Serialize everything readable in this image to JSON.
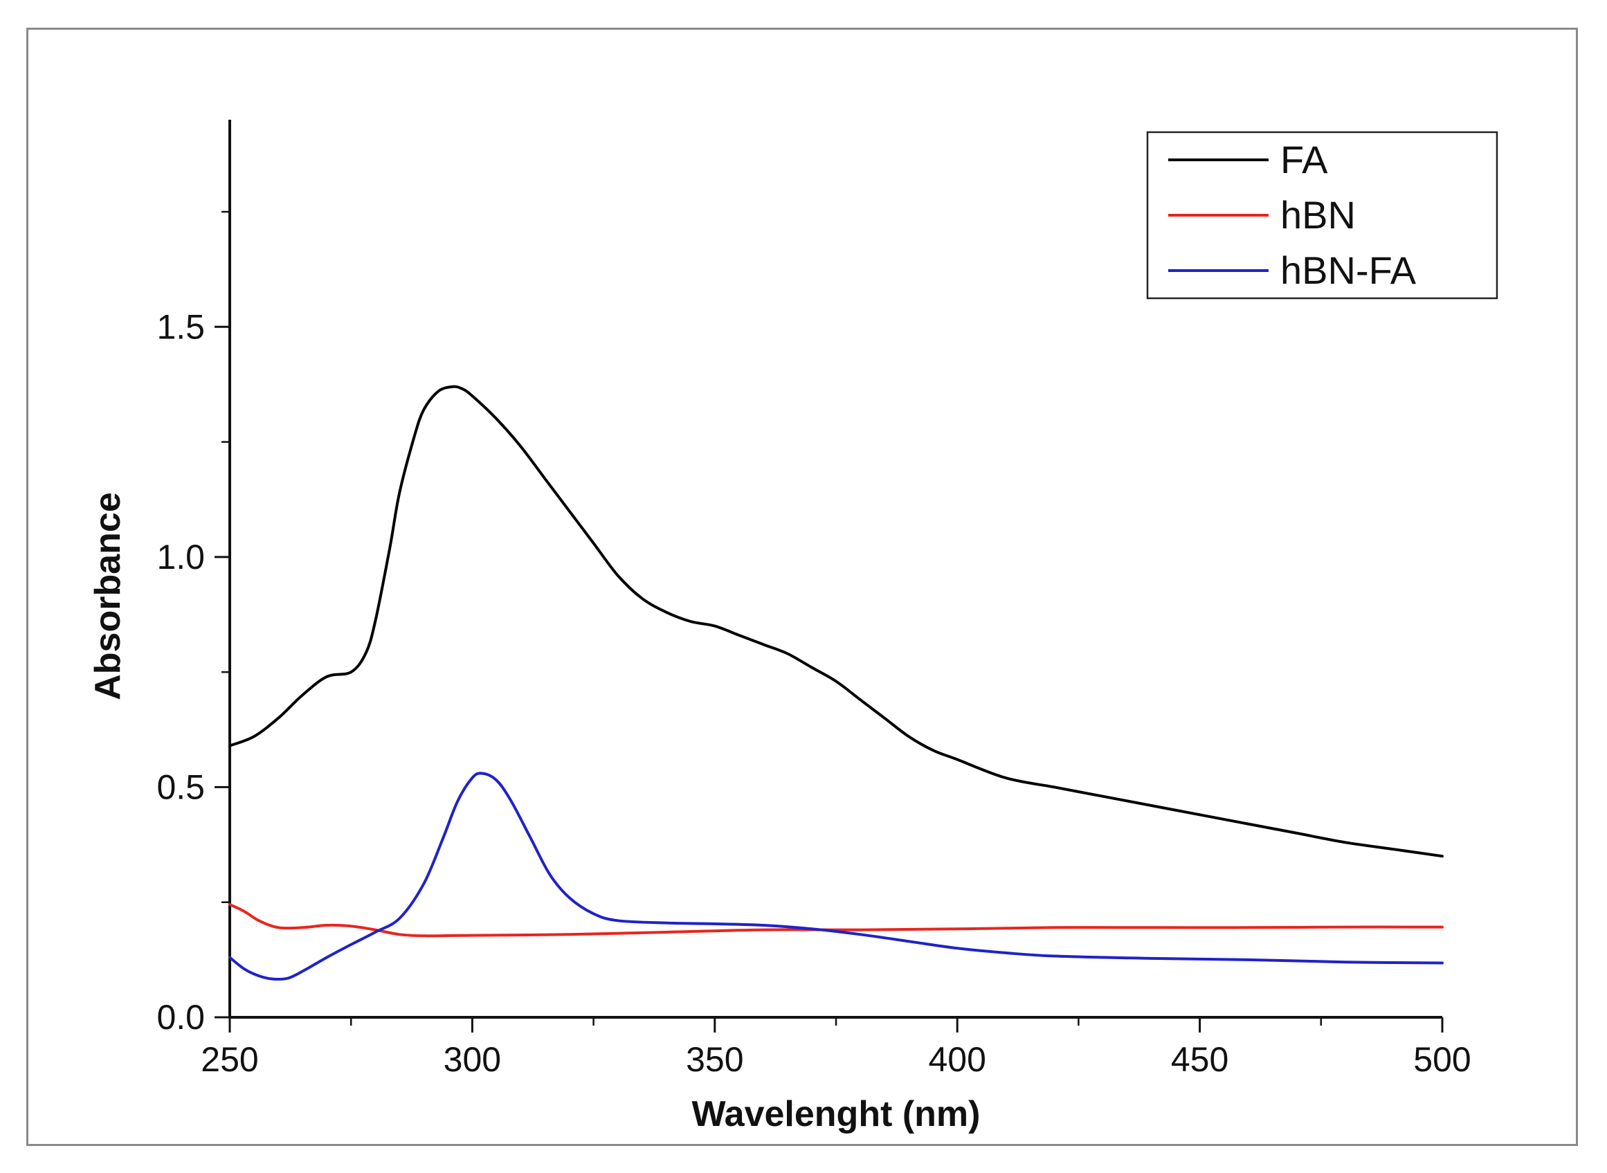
{
  "chart_data": {
    "type": "line",
    "title": "",
    "xlabel": "Wavelenght (nm)",
    "ylabel": "Absorbance",
    "xlim": [
      250,
      500
    ],
    "ylim": [
      0,
      1.95
    ],
    "xticks": [
      250,
      300,
      350,
      400,
      450,
      500
    ],
    "xtick_labels": [
      "250",
      "300",
      "350",
      "400",
      "450",
      "500"
    ],
    "yticks": [
      0,
      0.5,
      1.0,
      1.5
    ],
    "ytick_labels": [
      "0.0",
      "0.5",
      "1.0",
      "1.5"
    ],
    "grid": false,
    "legend_position": "top-right",
    "series": [
      {
        "name": "FA",
        "color": "#000000",
        "x": [
          250,
          255,
          260,
          265,
          270,
          275,
          278,
          280,
          283,
          285,
          288,
          290,
          293,
          296,
          298,
          300,
          305,
          310,
          315,
          320,
          325,
          330,
          335,
          340,
          345,
          350,
          355,
          360,
          365,
          370,
          375,
          380,
          385,
          390,
          395,
          400,
          410,
          420,
          430,
          440,
          450,
          460,
          470,
          480,
          490,
          500
        ],
        "y": [
          0.59,
          0.61,
          0.65,
          0.7,
          0.74,
          0.75,
          0.79,
          0.86,
          1.02,
          1.14,
          1.26,
          1.32,
          1.36,
          1.37,
          1.365,
          1.35,
          1.3,
          1.24,
          1.17,
          1.1,
          1.03,
          0.96,
          0.91,
          0.88,
          0.86,
          0.85,
          0.83,
          0.81,
          0.79,
          0.76,
          0.73,
          0.69,
          0.65,
          0.61,
          0.58,
          0.56,
          0.52,
          0.5,
          0.48,
          0.46,
          0.44,
          0.42,
          0.4,
          0.38,
          0.365,
          0.35
        ]
      },
      {
        "name": "hBN",
        "color": "#e8251f",
        "x": [
          250,
          253,
          256,
          260,
          265,
          270,
          275,
          280,
          285,
          290,
          300,
          320,
          340,
          360,
          380,
          400,
          420,
          440,
          460,
          480,
          500
        ],
        "y": [
          0.245,
          0.23,
          0.21,
          0.195,
          0.195,
          0.2,
          0.198,
          0.19,
          0.18,
          0.177,
          0.178,
          0.18,
          0.185,
          0.19,
          0.19,
          0.192,
          0.195,
          0.195,
          0.195,
          0.196,
          0.196
        ]
      },
      {
        "name": "hBN-FA",
        "color": "#1f22c8",
        "x": [
          250,
          253,
          256,
          259,
          262,
          265,
          270,
          275,
          280,
          285,
          290,
          294,
          297,
          300,
          302,
          305,
          308,
          312,
          316,
          320,
          325,
          330,
          340,
          350,
          360,
          370,
          380,
          390,
          400,
          410,
          420,
          440,
          460,
          480,
          500
        ],
        "y": [
          0.13,
          0.105,
          0.09,
          0.083,
          0.085,
          0.1,
          0.13,
          0.158,
          0.185,
          0.215,
          0.29,
          0.39,
          0.47,
          0.52,
          0.53,
          0.515,
          0.47,
          0.39,
          0.31,
          0.26,
          0.225,
          0.21,
          0.205,
          0.203,
          0.2,
          0.192,
          0.18,
          0.165,
          0.15,
          0.14,
          0.133,
          0.128,
          0.125,
          0.12,
          0.118
        ]
      }
    ]
  }
}
